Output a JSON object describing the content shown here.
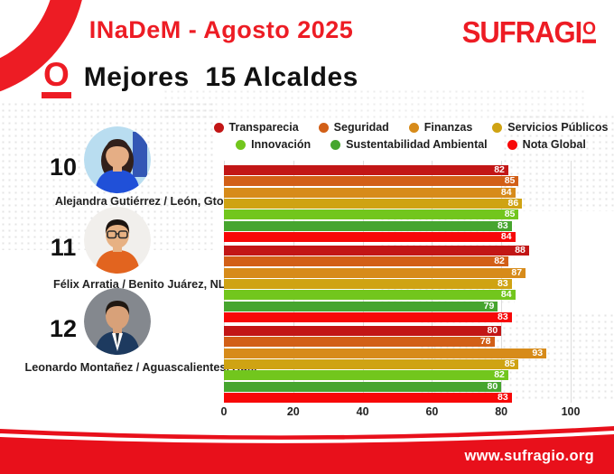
{
  "header": {
    "title": "INaDeM - Agosto 2025",
    "logo_main": "SUFRAGI",
    "logo_ordinal": "O"
  },
  "page_title": {
    "icon_letter": "O",
    "text": "Mejores  15 Alcaldes"
  },
  "footer": {
    "url": "www.sufragio.org"
  },
  "colors": {
    "brand_red": "#ed1c24",
    "footer_red": "#e8101b",
    "title_black": "#111111"
  },
  "chart_data": {
    "type": "bar",
    "orientation": "horizontal",
    "title": "Mejores 15 Alcaldes",
    "xlim": [
      0,
      100
    ],
    "x_ticks": [
      0,
      20,
      40,
      60,
      80,
      100
    ],
    "grid": true,
    "legend_position": "top",
    "metrics": [
      {
        "name": "Transparecia",
        "color": "#c21616"
      },
      {
        "name": "Seguridad",
        "color": "#d25f17"
      },
      {
        "name": "Finanzas",
        "color": "#d78b1a"
      },
      {
        "name": "Servicios Públicos",
        "color": "#cfa313"
      },
      {
        "name": "Innovación",
        "color": "#72c61d"
      },
      {
        "name": "Sustentabilidad Ambiental",
        "color": "#46a52f"
      },
      {
        "name": "Nota Global",
        "color": "#f70808"
      }
    ],
    "entries": [
      {
        "rank": "10",
        "name": "Alejandra Gutiérrez / León, Gto.",
        "values": [
          82,
          85,
          84,
          86,
          85,
          83,
          84
        ],
        "avatar": {
          "bg": "#b9ddf0",
          "accent": "#1b3faa",
          "hair": "#31201b",
          "skin": "#e5ae85",
          "shirt": "#2050d8",
          "long_hair": true,
          "glasses": false,
          "suit": false
        }
      },
      {
        "rank": "11",
        "name": "Félix Arratia / Benito Juárez, NL.",
        "values": [
          88,
          82,
          87,
          83,
          84,
          79,
          83
        ],
        "avatar": {
          "bg": "#f1efec",
          "accent": "",
          "hair": "#1c1410",
          "skin": "#e7b183",
          "shirt": "#e2641f",
          "long_hair": false,
          "glasses": true,
          "suit": false
        }
      },
      {
        "rank": "12",
        "name": "Leonardo Montañez / Aguascalientes, Ags.",
        "values": [
          80,
          78,
          93,
          85,
          82,
          80,
          83
        ],
        "avatar": {
          "bg": "#84888e",
          "accent": "",
          "hair": "#201812",
          "skin": "#d8a179",
          "shirt": "#1d3a5f",
          "long_hair": false,
          "glasses": false,
          "suit": true
        }
      }
    ]
  }
}
